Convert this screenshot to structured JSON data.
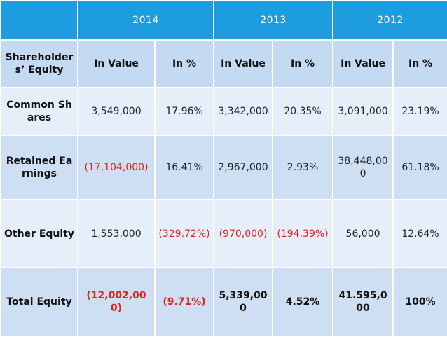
{
  "years": [
    "2014",
    "2013",
    "2012"
  ],
  "subheader": {
    "label": "Shareholders’ Equity",
    "value_col": "In Value",
    "pct_col": "In %"
  },
  "rows": [
    {
      "label": "Common Shares",
      "cells": [
        "3,549,000",
        "17.96%",
        "3,342,000",
        "20.35%",
        "3,091,000",
        "23.19%"
      ]
    },
    {
      "label": "Retained Earnings",
      "cells": [
        "(17,104,000)",
        "16.41%",
        "2,967,000",
        "2.93%",
        "38,448,000",
        "61.18%"
      ]
    },
    {
      "label": "Other Equity",
      "cells": [
        "1,553,000",
        "(329.72%)",
        "(970,000)",
        "(194.39%)",
        "56,000",
        "12.64%"
      ]
    },
    {
      "label": "Total Equity",
      "cells": [
        "(12,002,000)",
        "(9.71%)",
        "5,339,000",
        "4.52%",
        "41.595,000",
        "100%"
      ]
    }
  ],
  "colors": {
    "header_bg": "#1e9ce0",
    "negative_text": "#e3211c",
    "row_light": "#e6eef9",
    "row_dark": "#cfdff3"
  }
}
